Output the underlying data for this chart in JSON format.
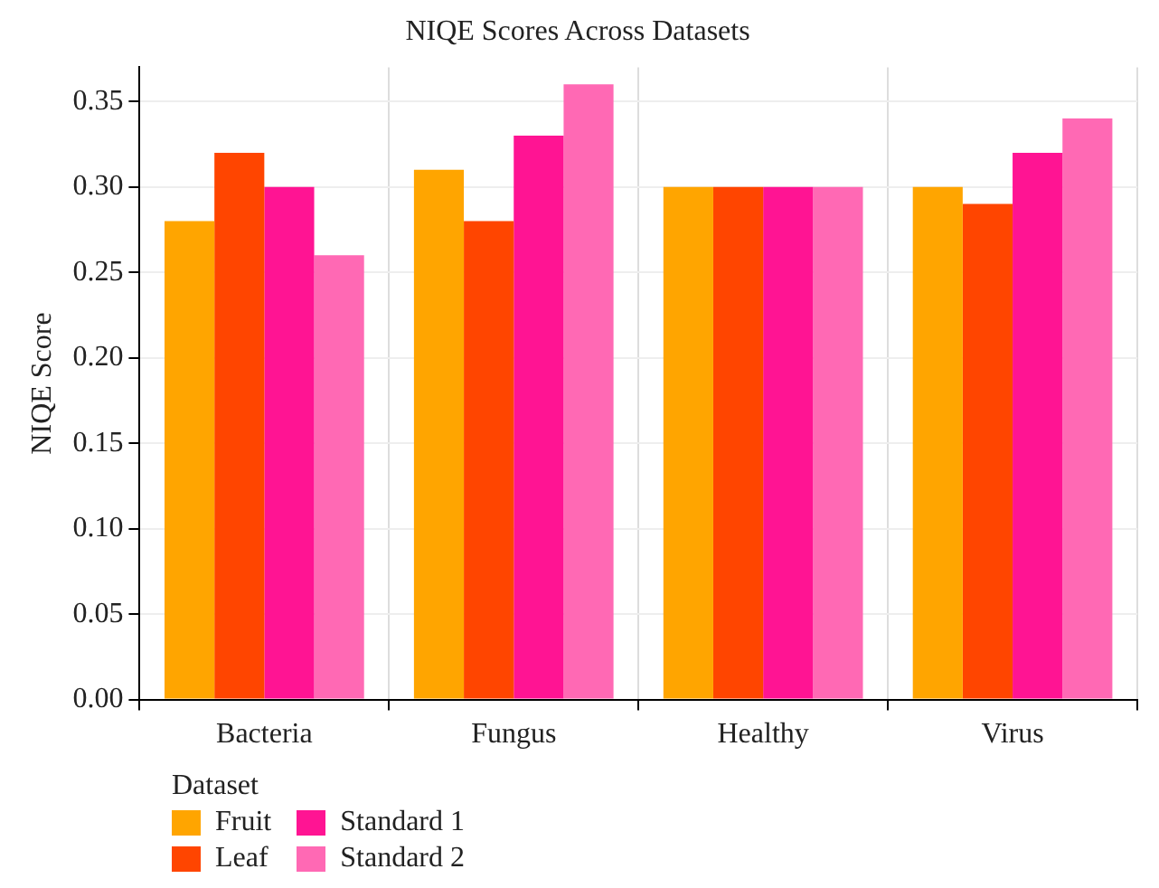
{
  "chart_data": {
    "type": "bar",
    "title": "NIQE Scores Across Datasets",
    "ylabel": "NIQE Score",
    "legend_title": "Dataset",
    "categories": [
      "Bacteria",
      "Fungus",
      "Healthy",
      "Virus"
    ],
    "series": [
      {
        "name": "Fruit",
        "color": "#ffa500",
        "values": [
          0.28,
          0.31,
          0.3,
          0.3
        ]
      },
      {
        "name": "Leaf",
        "color": "#ff4500",
        "values": [
          0.32,
          0.28,
          0.3,
          0.29
        ]
      },
      {
        "name": "Standard 1",
        "color": "#ff1493",
        "values": [
          0.3,
          0.33,
          0.3,
          0.32
        ]
      },
      {
        "name": "Standard 2",
        "color": "#ff69b4",
        "values": [
          0.26,
          0.36,
          0.3,
          0.34
        ]
      }
    ],
    "ylim": [
      0,
      0.37
    ],
    "yticks": [
      {
        "value": 0,
        "label": "0.00"
      },
      {
        "value": 0.05,
        "label": "0.05"
      },
      {
        "value": 0.1,
        "label": "0.10"
      },
      {
        "value": 0.15,
        "label": "0.15"
      },
      {
        "value": 0.2,
        "label": "0.20"
      },
      {
        "value": 0.25,
        "label": "0.25"
      },
      {
        "value": 0.3,
        "label": "0.30"
      },
      {
        "value": 0.35,
        "label": "0.35"
      }
    ],
    "grid": true,
    "legend": "bottom left"
  }
}
